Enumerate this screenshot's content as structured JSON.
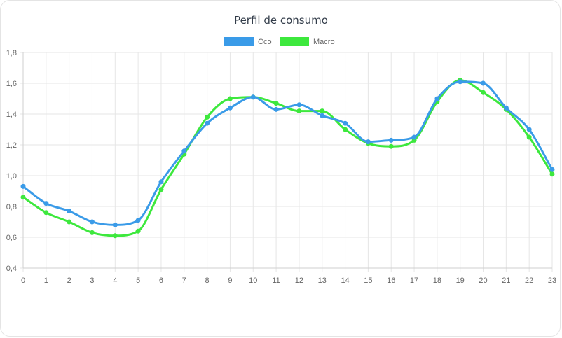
{
  "chart_data": {
    "type": "line",
    "title": "Perfil de consumo",
    "x": [
      0,
      1,
      2,
      3,
      4,
      5,
      6,
      7,
      8,
      9,
      10,
      11,
      12,
      13,
      14,
      15,
      16,
      17,
      18,
      19,
      20,
      21,
      22,
      23
    ],
    "x_tick_labels": [
      "0",
      "1",
      "2",
      "3",
      "4",
      "5",
      "6",
      "7",
      "8",
      "9",
      "10",
      "11",
      "12",
      "13",
      "14",
      "15",
      "16",
      "17",
      "18",
      "19",
      "20",
      "21",
      "22",
      "23"
    ],
    "ylim": [
      0.4,
      1.8
    ],
    "y_ticks": [
      0.4,
      0.6,
      0.8,
      1.0,
      1.2,
      1.4,
      1.6,
      1.8
    ],
    "y_tick_labels": [
      "0,4",
      "0,6",
      "0,8",
      "1,0",
      "1,2",
      "1,4",
      "1,6",
      "1,8"
    ],
    "grid": true,
    "legend_position": "top-center",
    "series": [
      {
        "name": "Cco",
        "color": "#3a9be8",
        "values": [
          0.93,
          0.82,
          0.77,
          0.7,
          0.68,
          0.71,
          0.96,
          1.16,
          1.34,
          1.44,
          1.51,
          1.43,
          1.46,
          1.39,
          1.34,
          1.22,
          1.23,
          1.25,
          1.5,
          1.61,
          1.6,
          1.44,
          1.3,
          1.04
        ]
      },
      {
        "name": "Macro",
        "color": "#3de83d",
        "values": [
          0.86,
          0.76,
          0.7,
          0.63,
          0.61,
          0.64,
          0.91,
          1.14,
          1.38,
          1.5,
          1.51,
          1.47,
          1.42,
          1.42,
          1.3,
          1.21,
          1.19,
          1.23,
          1.48,
          1.62,
          1.54,
          1.43,
          1.25,
          1.01
        ]
      }
    ]
  }
}
